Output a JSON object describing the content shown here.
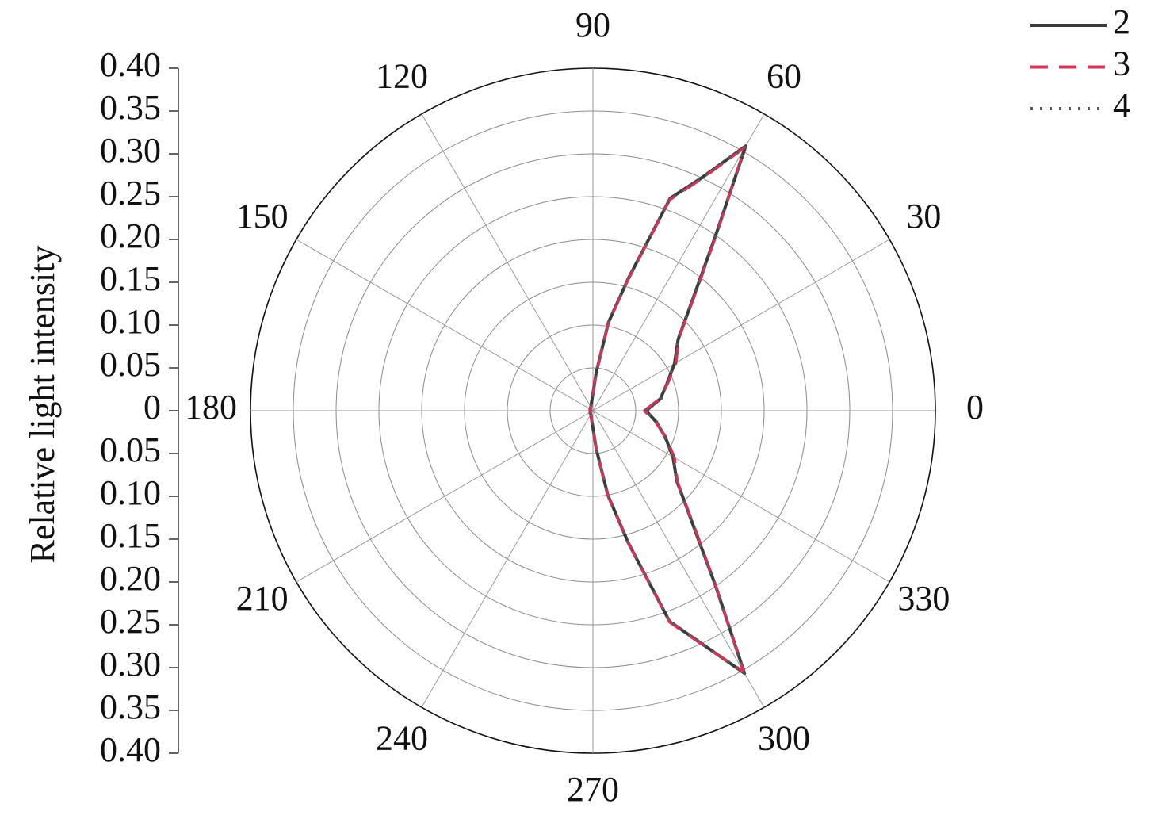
{
  "chart_data": {
    "type": "polar-line",
    "y_label": "Relative light intensity",
    "x": [
      0,
      10,
      20,
      30,
      40,
      45,
      50,
      55,
      60,
      65,
      70,
      75,
      80,
      85,
      90,
      120,
      150,
      180,
      210,
      240,
      270,
      275,
      280,
      285,
      290,
      295,
      300,
      305,
      310,
      315,
      320,
      330,
      340,
      350
    ],
    "series": [
      {
        "name": "2",
        "color": "#3b3b3b",
        "style": "solid",
        "values": [
          0.062,
          0.08,
          0.092,
          0.11,
          0.13,
          0.154,
          0.19,
          0.25,
          0.357,
          0.3,
          0.264,
          0.16,
          0.105,
          0.045,
          0.02,
          0.005,
          0.004,
          0.003,
          0.004,
          0.005,
          0.02,
          0.045,
          0.1,
          0.16,
          0.262,
          0.3,
          0.354,
          0.25,
          0.188,
          0.152,
          0.128,
          0.108,
          0.09,
          0.075
        ]
      },
      {
        "name": "3",
        "color": "#d6335a",
        "style": "dashed",
        "values": [
          0.06,
          0.079,
          0.093,
          0.112,
          0.131,
          0.155,
          0.192,
          0.252,
          0.355,
          0.298,
          0.262,
          0.158,
          0.104,
          0.044,
          0.019,
          0.005,
          0.004,
          0.003,
          0.004,
          0.005,
          0.019,
          0.044,
          0.101,
          0.161,
          0.263,
          0.301,
          0.352,
          0.251,
          0.19,
          0.153,
          0.129,
          0.11,
          0.091,
          0.074
        ]
      },
      {
        "name": "4",
        "color": "#5a5a5a",
        "style": "dotted",
        "values": [
          0.061,
          0.081,
          0.091,
          0.111,
          0.129,
          0.153,
          0.191,
          0.251,
          0.356,
          0.299,
          0.263,
          0.159,
          0.106,
          0.046,
          0.021,
          0.005,
          0.004,
          0.003,
          0.004,
          0.005,
          0.021,
          0.046,
          0.099,
          0.159,
          0.261,
          0.299,
          0.353,
          0.249,
          0.189,
          0.151,
          0.127,
          0.109,
          0.089,
          0.076
        ]
      }
    ],
    "ylim": [
      0,
      0.4
    ],
    "yticks": [
      {
        "value": 0.4,
        "label": "0.40"
      },
      {
        "value": 0.35,
        "label": "0.35"
      },
      {
        "value": 0.3,
        "label": "0.30"
      },
      {
        "value": 0.25,
        "label": "0.25"
      },
      {
        "value": 0.2,
        "label": "0.20"
      },
      {
        "value": 0.15,
        "label": "0.15"
      },
      {
        "value": 0.1,
        "label": "0.10"
      },
      {
        "value": 0.05,
        "label": "0.05"
      },
      0,
      {
        "value": 0.05,
        "label": "0.05"
      },
      {
        "value": 0.1,
        "label": "0.10"
      },
      {
        "value": 0.15,
        "label": "0.15"
      },
      {
        "value": 0.2,
        "label": "0.20"
      },
      {
        "value": 0.25,
        "label": "0.25"
      },
      {
        "value": 0.3,
        "label": "0.30"
      },
      {
        "value": 0.35,
        "label": "0.35"
      },
      {
        "value": 0.4,
        "label": "0.40"
      }
    ],
    "xticks": [
      0,
      30,
      60,
      90,
      120,
      150,
      180,
      210,
      240,
      270,
      300,
      330
    ],
    "grid": true,
    "legend": "upper right"
  }
}
